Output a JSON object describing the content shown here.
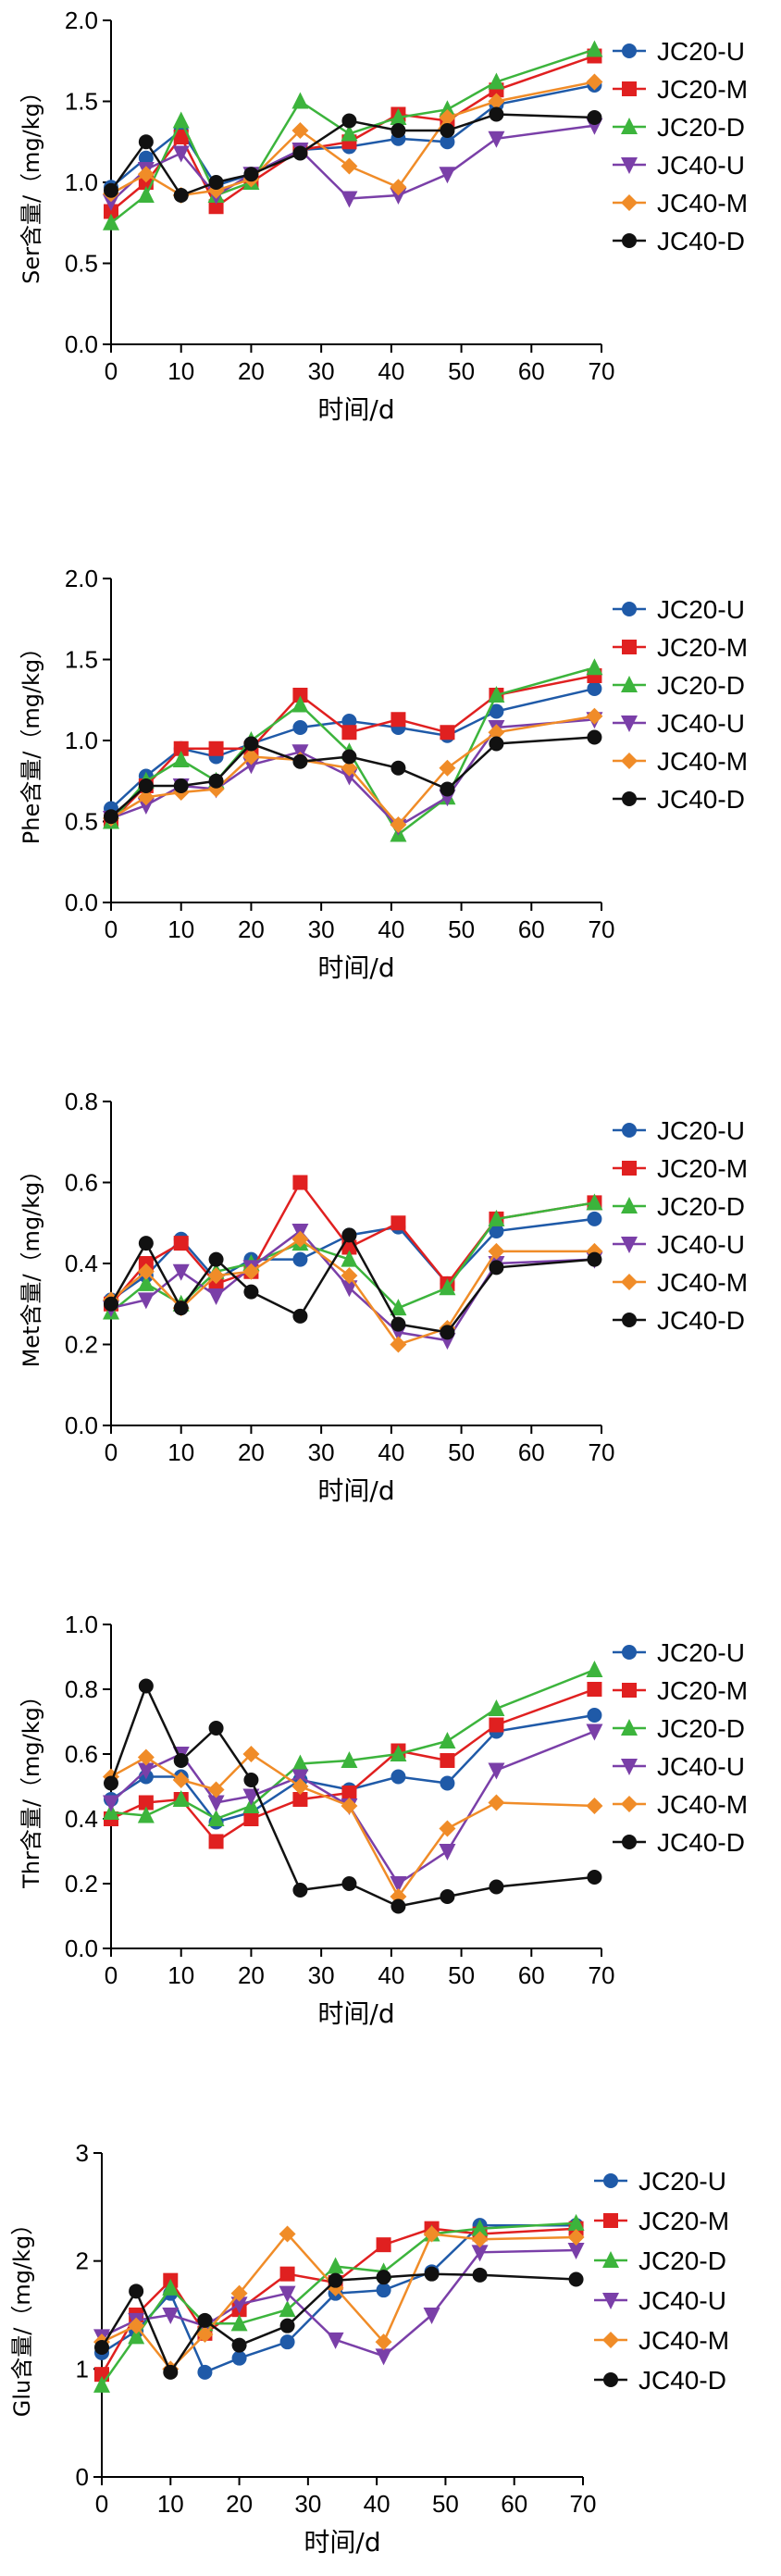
{
  "chart_data": [
    {
      "type": "line",
      "ylabel": "Ser含量/（mg/kg）",
      "xlabel": "时间/d",
      "xlim": [
        0,
        70
      ],
      "ylim": [
        0,
        2.0
      ],
      "xticks": [
        0,
        10,
        20,
        30,
        40,
        50,
        60,
        70
      ],
      "yticks": [
        "0.0",
        "0.5",
        "1.0",
        "1.5",
        "2.0"
      ],
      "x": [
        0,
        5,
        10,
        15,
        20,
        27,
        34,
        41,
        48,
        55,
        69
      ],
      "legend_position": "right",
      "series": [
        {
          "name": "JC20-U",
          "values": [
            0.97,
            1.15,
            1.32,
            0.98,
            1.05,
            1.2,
            1.22,
            1.27,
            1.25,
            1.48,
            1.6
          ]
        },
        {
          "name": "JC20-M",
          "values": [
            0.82,
            1.0,
            1.28,
            0.85,
            1.0,
            1.2,
            1.25,
            1.42,
            1.38,
            1.57,
            1.78
          ]
        },
        {
          "name": "JC20-D",
          "values": [
            0.75,
            0.92,
            1.38,
            0.92,
            1.0,
            1.5,
            1.3,
            1.4,
            1.45,
            1.62,
            1.82
          ]
        },
        {
          "name": "JC40-U",
          "values": [
            0.88,
            1.08,
            1.18,
            0.92,
            1.05,
            1.2,
            0.9,
            0.92,
            1.05,
            1.27,
            1.35
          ]
        },
        {
          "name": "JC40-M",
          "values": [
            0.93,
            1.05,
            0.92,
            0.95,
            1.02,
            1.32,
            1.1,
            0.97,
            1.4,
            1.5,
            1.62
          ]
        },
        {
          "name": "JC40-D",
          "values": [
            0.95,
            1.25,
            0.92,
            1.0,
            1.05,
            1.18,
            1.38,
            1.32,
            1.32,
            1.42,
            1.4
          ]
        }
      ]
    },
    {
      "type": "line",
      "ylabel": "Phe含量/（mg/kg）",
      "xlabel": "时间/d",
      "xlim": [
        0,
        70
      ],
      "ylim": [
        0,
        2.0
      ],
      "xticks": [
        0,
        10,
        20,
        30,
        40,
        50,
        60,
        70
      ],
      "yticks": [
        "0.0",
        "0.5",
        "1.0",
        "1.5",
        "2.0"
      ],
      "x": [
        0,
        5,
        10,
        15,
        20,
        27,
        34,
        41,
        48,
        55,
        69
      ],
      "legend_position": "right",
      "series": [
        {
          "name": "JC20-U",
          "values": [
            0.58,
            0.78,
            0.95,
            0.9,
            0.98,
            1.08,
            1.12,
            1.08,
            1.03,
            1.18,
            1.32
          ]
        },
        {
          "name": "JC20-M",
          "values": [
            0.5,
            0.72,
            0.95,
            0.95,
            0.95,
            1.28,
            1.05,
            1.13,
            1.05,
            1.28,
            1.4
          ]
        },
        {
          "name": "JC20-D",
          "values": [
            0.5,
            0.75,
            0.88,
            0.75,
            1.0,
            1.22,
            0.93,
            0.42,
            0.65,
            1.28,
            1.45
          ]
        },
        {
          "name": "JC40-U",
          "values": [
            0.52,
            0.6,
            0.72,
            0.7,
            0.85,
            0.93,
            0.78,
            0.47,
            0.65,
            1.08,
            1.13
          ]
        },
        {
          "name": "JC40-M",
          "values": [
            0.52,
            0.65,
            0.68,
            0.7,
            0.9,
            0.88,
            0.83,
            0.48,
            0.83,
            1.05,
            1.15
          ]
        },
        {
          "name": "JC40-D",
          "values": [
            0.53,
            0.72,
            0.72,
            0.75,
            0.98,
            0.87,
            0.9,
            0.83,
            0.7,
            0.98,
            1.02
          ]
        }
      ]
    },
    {
      "type": "line",
      "ylabel": "Met含量/（mg/kg）",
      "xlabel": "时间/d",
      "xlim": [
        0,
        70
      ],
      "ylim": [
        0,
        0.8
      ],
      "xticks": [
        0,
        10,
        20,
        30,
        40,
        50,
        60,
        70
      ],
      "yticks": [
        "0.0",
        "0.2",
        "0.4",
        "0.6",
        "0.8"
      ],
      "x": [
        0,
        5,
        10,
        15,
        20,
        27,
        34,
        41,
        48,
        55,
        69
      ],
      "legend_position": "right",
      "series": [
        {
          "name": "JC20-U",
          "values": [
            0.31,
            0.37,
            0.46,
            0.36,
            0.41,
            0.41,
            0.47,
            0.49,
            0.35,
            0.48,
            0.51
          ]
        },
        {
          "name": "JC20-M",
          "values": [
            0.3,
            0.4,
            0.45,
            0.35,
            0.38,
            0.6,
            0.44,
            0.5,
            0.35,
            0.51,
            0.55
          ]
        },
        {
          "name": "JC20-D",
          "values": [
            0.28,
            0.35,
            0.3,
            0.38,
            0.4,
            0.45,
            0.41,
            0.29,
            0.34,
            0.51,
            0.55
          ]
        },
        {
          "name": "JC40-U",
          "values": [
            0.29,
            0.31,
            0.38,
            0.32,
            0.39,
            0.48,
            0.34,
            0.23,
            0.21,
            0.4,
            0.41
          ]
        },
        {
          "name": "JC40-M",
          "values": [
            0.31,
            0.38,
            0.29,
            0.37,
            0.38,
            0.46,
            0.37,
            0.2,
            0.24,
            0.43,
            0.43
          ]
        },
        {
          "name": "JC40-D",
          "values": [
            0.3,
            0.45,
            0.29,
            0.41,
            0.33,
            0.27,
            0.47,
            0.25,
            0.23,
            0.39,
            0.41
          ]
        }
      ]
    },
    {
      "type": "line",
      "ylabel": "Thr含量/（mg/kg）",
      "xlabel": "时间/d",
      "xlim": [
        0,
        70
      ],
      "ylim": [
        0,
        1.0
      ],
      "xticks": [
        0,
        10,
        20,
        30,
        40,
        50,
        60,
        70
      ],
      "yticks": [
        "0.0",
        "0.2",
        "0.4",
        "0.6",
        "0.8",
        "1.0"
      ],
      "x": [
        0,
        5,
        10,
        15,
        20,
        27,
        34,
        41,
        48,
        55,
        69
      ],
      "legend_position": "right",
      "series": [
        {
          "name": "JC20-U",
          "values": [
            0.46,
            0.53,
            0.53,
            0.39,
            0.42,
            0.52,
            0.49,
            0.53,
            0.51,
            0.67,
            0.72
          ]
        },
        {
          "name": "JC20-M",
          "values": [
            0.4,
            0.45,
            0.46,
            0.33,
            0.4,
            0.46,
            0.48,
            0.61,
            0.58,
            0.69,
            0.8
          ]
        },
        {
          "name": "JC20-D",
          "values": [
            0.42,
            0.41,
            0.46,
            0.4,
            0.44,
            0.57,
            0.58,
            0.6,
            0.64,
            0.74,
            0.86
          ]
        },
        {
          "name": "JC40-U",
          "values": [
            0.45,
            0.55,
            0.6,
            0.45,
            0.47,
            0.53,
            0.44,
            0.2,
            0.3,
            0.55,
            0.67
          ]
        },
        {
          "name": "JC40-M",
          "values": [
            0.53,
            0.59,
            0.52,
            0.49,
            0.6,
            0.5,
            0.44,
            0.16,
            0.37,
            0.45,
            0.44
          ]
        },
        {
          "name": "JC40-D",
          "values": [
            0.51,
            0.81,
            0.58,
            0.68,
            0.52,
            0.18,
            0.2,
            0.13,
            0.16,
            0.19,
            0.22
          ]
        }
      ]
    },
    {
      "type": "line",
      "ylabel": "Glu含量/（mg/kg）",
      "xlabel": "时间/d",
      "xlim": [
        0,
        70
      ],
      "ylim": [
        0,
        3
      ],
      "xticks": [
        0,
        10,
        20,
        30,
        40,
        50,
        60,
        70
      ],
      "yticks": [
        "0",
        "1",
        "2",
        "3"
      ],
      "x": [
        0,
        5,
        10,
        15,
        20,
        27,
        34,
        41,
        48,
        55,
        69
      ],
      "legend_position": "right",
      "series": [
        {
          "name": "JC20-U",
          "values": [
            1.15,
            1.35,
            1.7,
            0.97,
            1.1,
            1.25,
            1.7,
            1.73,
            1.9,
            2.33,
            2.33
          ]
        },
        {
          "name": "JC20-M",
          "values": [
            0.95,
            1.5,
            1.82,
            1.33,
            1.55,
            1.88,
            1.8,
            2.15,
            2.3,
            2.25,
            2.3
          ]
        },
        {
          "name": "JC20-D",
          "values": [
            0.85,
            1.3,
            1.75,
            1.42,
            1.42,
            1.55,
            1.95,
            1.9,
            2.25,
            2.3,
            2.35
          ]
        },
        {
          "name": "JC40-U",
          "values": [
            1.3,
            1.45,
            1.5,
            1.4,
            1.6,
            1.7,
            1.27,
            1.12,
            1.5,
            2.08,
            2.1
          ]
        },
        {
          "name": "JC40-M",
          "values": [
            1.25,
            1.4,
            1.0,
            1.32,
            1.7,
            2.25,
            1.75,
            1.25,
            2.25,
            2.2,
            2.22
          ]
        },
        {
          "name": "JC40-D",
          "values": [
            1.2,
            1.72,
            0.97,
            1.45,
            1.22,
            1.4,
            1.82,
            1.85,
            1.88,
            1.87,
            1.83
          ]
        }
      ]
    }
  ],
  "series_styles": [
    {
      "name": "JC20-U",
      "color": "#1f5aa8",
      "marker": "circle"
    },
    {
      "name": "JC20-M",
      "color": "#e02020",
      "marker": "square"
    },
    {
      "name": "JC20-D",
      "color": "#3cb43c",
      "marker": "triangle-up"
    },
    {
      "name": "JC40-U",
      "color": "#7a3fa8",
      "marker": "triangle-down"
    },
    {
      "name": "JC40-M",
      "color": "#f08c28",
      "marker": "diamond"
    },
    {
      "name": "JC40-D",
      "color": "#111111",
      "marker": "circle"
    }
  ]
}
